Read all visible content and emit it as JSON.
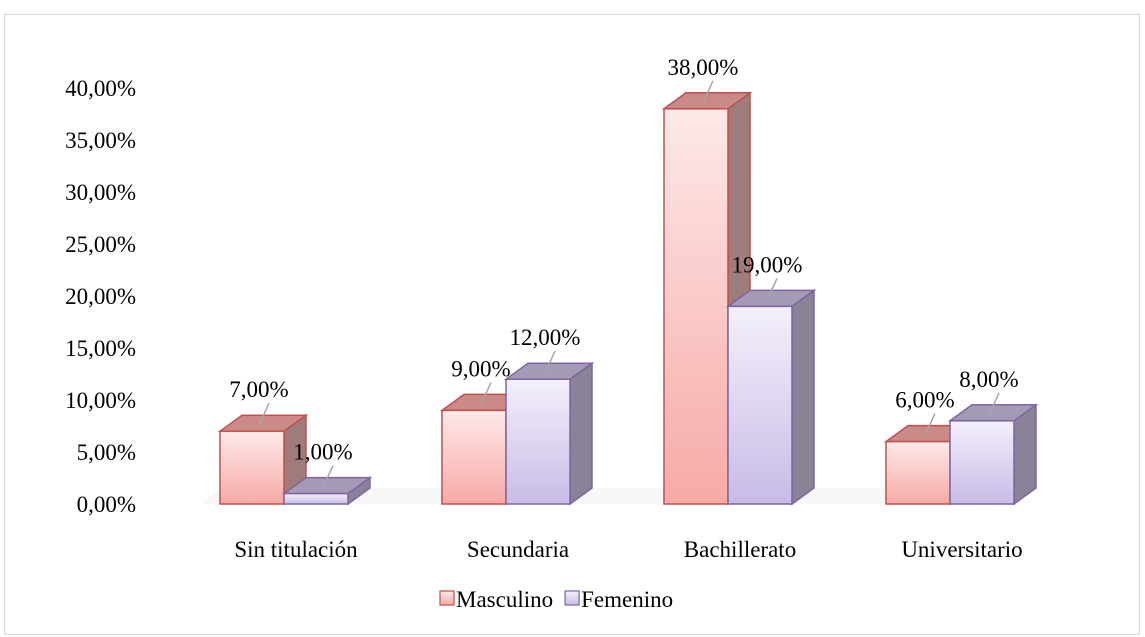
{
  "chart_data": {
    "type": "bar",
    "categories": [
      "Sin titulación",
      "Secundaria",
      "Bachillerato",
      "Universitario"
    ],
    "series": [
      {
        "name": "Masculino",
        "values": [
          7,
          9,
          38,
          6
        ],
        "labels": [
          "7,00%",
          "9,00%",
          "38,00%",
          "6,00%"
        ],
        "color_front_top": "#fde9e9",
        "color_front_bottom": "#f7aaa6",
        "color_top": "#c98a88",
        "color_side": "#9e7c7b",
        "color_edge": "#c0504d"
      },
      {
        "name": "Femenino",
        "values": [
          1,
          12,
          19,
          8
        ],
        "labels": [
          "1,00%",
          "12,00%",
          "19,00%",
          "8,00%"
        ],
        "color_front_top": "#f4f0fb",
        "color_front_bottom": "#c9bbe6",
        "color_top": "#a59ab6",
        "color_side": "#8a8296",
        "color_edge": "#8064a2"
      }
    ],
    "ylim": [
      0,
      40
    ],
    "yticks": [
      "0,00%",
      "5,00%",
      "10,00%",
      "15,00%",
      "20,00%",
      "25,00%",
      "30,00%",
      "35,00%",
      "40,00%"
    ],
    "ytick_step": 5,
    "title": "",
    "xlabel": "",
    "ylabel": "",
    "grid": false,
    "legend_position": "bottom"
  }
}
